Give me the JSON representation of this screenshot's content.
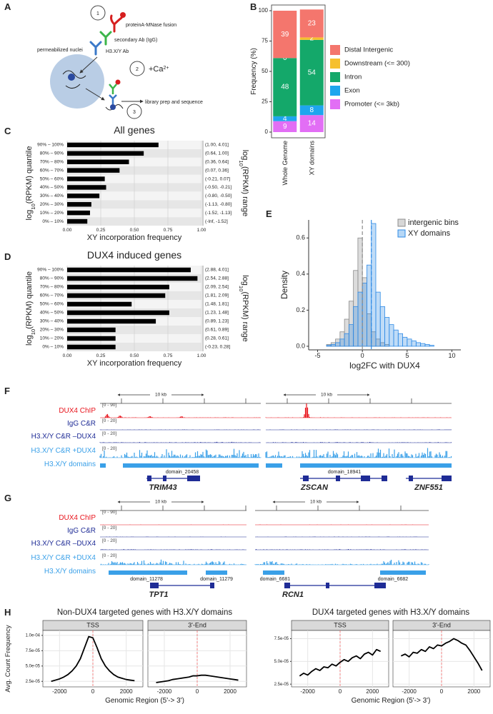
{
  "panel_letters": [
    "A",
    "B",
    "C",
    "D",
    "E",
    "F",
    "G",
    "H"
  ],
  "diagram": {
    "steps": [
      "1",
      "2",
      "3"
    ],
    "fusion": "proteinA-MNase fusion",
    "secondary": "secondary Ab (IgG)",
    "primary": "H3.X/Y Ab",
    "nuclei": "permeabilized nuclei",
    "calcium": "+Ca",
    "calcium_charge": "2+",
    "library": "library prep and sequence"
  },
  "chart_data": [
    {
      "type": "bar",
      "stacked": true,
      "data_labels": true,
      "ylabel": "Frequency (%)",
      "categories": [
        "Whole Genome",
        "XY domains"
      ],
      "series": [
        {
          "name": "Distal Intergenic",
          "color": "#f4766d",
          "values": [
            39,
            23
          ]
        },
        {
          "name": "Downstream (<= 300)",
          "color": "#f6c02e",
          "values": [
            0,
            2
          ]
        },
        {
          "name": "Intron",
          "color": "#14a86a",
          "values": [
            48,
            54
          ]
        },
        {
          "name": "Exon",
          "color": "#1ea6ee",
          "values": [
            4,
            8
          ]
        },
        {
          "name": "Promoter (<= 3kb)",
          "color": "#e26ef5",
          "values": [
            9,
            14
          ]
        }
      ],
      "ylim": [
        0,
        100
      ],
      "yticks": [
        0,
        25,
        50,
        75,
        100
      ]
    },
    {
      "type": "barh",
      "title": "All genes",
      "color": "#000000",
      "xlabel": "XY incorporation frequency",
      "ylabel": [
        "log",
        "10",
        "(RPKM) quantile"
      ],
      "y2label": [
        "log",
        "10",
        "(RPKM) range"
      ],
      "categories": [
        "0% – 10%",
        "10% – 20%",
        "20% – 30%",
        "30% – 40%",
        "40% – 50%",
        "50% – 60%",
        "60% – 70%",
        "70% – 80%",
        "80% – 90%",
        "90% – 100%"
      ],
      "range_labels": [
        "(-Inf, -1.52]",
        "(-1.52, -1.13]",
        "(-1.13, -0.80]",
        "(-0.80, -0.50]",
        "(-0.50, -0.21]",
        "(-0.21, 0.07]",
        "(0.07, 0.36]",
        "(0.36, 0.64]",
        "(0.64, 1.00]",
        "(1.00, 4.01]"
      ],
      "values": [
        0.15,
        0.17,
        0.18,
        0.24,
        0.29,
        0.28,
        0.39,
        0.46,
        0.57,
        0.68
      ],
      "xlim": [
        0,
        1
      ],
      "xticks": [
        {
          "value": 0,
          "label": "0.00"
        },
        0.25,
        {
          "value": 0.5,
          "label": "0.50"
        },
        0.75,
        {
          "value": 1,
          "label": "1.00"
        }
      ],
      "grid": true
    },
    {
      "type": "barh",
      "title": "DUX4 induced genes",
      "color": "#000000",
      "xlabel": "XY incorporation frequency",
      "ylabel": [
        "log",
        "10",
        "(RPKM) quantile"
      ],
      "y2label": [
        "log",
        "10",
        "(RPKM) range"
      ],
      "categories": [
        "0% – 10%",
        "10% – 20%",
        "20% – 30%",
        "30% – 40%",
        "40% – 50%",
        "50% – 60%",
        "60% – 70%",
        "70% – 80%",
        "80% – 90%",
        "90% – 100%"
      ],
      "range_labels": [
        "(-0.23, 0.28]",
        "(0.28, 0.61]",
        "(0.61, 0.89]",
        "(0.89, 1.23]",
        "(1.23, 1.48]",
        "(1.48, 1.81]",
        "(1.81, 2.09]",
        "(2.09, 2.54]",
        "(2.54, 2.88]",
        "(2.88, 4.01]"
      ],
      "values": [
        0.36,
        0.36,
        0.36,
        0.66,
        0.76,
        0.48,
        0.73,
        0.76,
        0.97,
        0.92
      ],
      "xlim": [
        0,
        1
      ],
      "xticks": [
        {
          "value": 0,
          "label": "0.00"
        },
        0.25,
        {
          "value": 0.5,
          "label": "0.50"
        },
        0.75,
        {
          "value": 1,
          "label": "1.00"
        }
      ],
      "grid": true
    },
    {
      "type": "histogram",
      "xlabel": "log2FC with DUX4",
      "ylabel": "Density",
      "bins": [
        -4,
        -3.5,
        -3,
        -2.5,
        -2,
        -1.5,
        -1,
        -0.5,
        0,
        0.5,
        1,
        1.5,
        2,
        2.5,
        3,
        3.5,
        4,
        4.5,
        5,
        5.5,
        6,
        6.5,
        7,
        7.5,
        8
      ],
      "series": [
        {
          "name": "intergenic bins",
          "color": "#8c8c8c",
          "values": [
            0.01,
            0.02,
            0.04,
            0.08,
            0.15,
            0.25,
            0.42,
            0.6,
            0.38,
            0.18,
            0.08,
            0.04,
            0.02,
            0.01,
            0,
            0,
            0,
            0,
            0,
            0,
            0,
            0,
            0,
            0
          ]
        },
        {
          "name": "XY domains",
          "color": "#2f8be6",
          "values": [
            0.005,
            0.01,
            0.02,
            0.04,
            0.07,
            0.12,
            0.22,
            0.3,
            0.35,
            0.45,
            0.68,
            0.3,
            0.22,
            0.16,
            0.12,
            0.09,
            0.07,
            0.05,
            0.04,
            0.03,
            0.02,
            0.015,
            0.01,
            0.005
          ]
        }
      ],
      "reference_lines": [
        {
          "value": 0,
          "color": "#8c8c8c"
        },
        {
          "value": 1,
          "color": "#2f8be6"
        }
      ],
      "xlim": [
        -6,
        11
      ],
      "xticks": [
        -5,
        0,
        5,
        10
      ],
      "ylim": [
        -0.02,
        0.7
      ],
      "yticks": [
        {
          "value": 0,
          "label": "0.0"
        },
        0.2,
        0.4,
        0.6
      ],
      "legend": "top-right"
    },
    {
      "type": "line",
      "color": "#000000",
      "title": "Non-DUX4 targeted genes with H3.X/Y domains",
      "ylabel": "Avg. Count Frequency",
      "xlabel": "Genomic Region (5'-> 3')",
      "x": [
        -2500,
        -2250,
        -2000,
        -1750,
        -1500,
        -1250,
        -1000,
        -750,
        -500,
        -250,
        0,
        250,
        500,
        750,
        1000,
        1250,
        1500,
        1750,
        2000,
        2250,
        2500
      ],
      "facets": [
        {
          "name": "TSS",
          "values": [
            2.5e-05,
            2.7e-05,
            2.9e-05,
            3.2e-05,
            3.6e-05,
            4.2e-05,
            5e-05,
            6.2e-05,
            8e-05,
            9.8e-05,
            9.6e-05,
            8e-05,
            6.2e-05,
            5e-05,
            4.2e-05,
            3.6e-05,
            3.2e-05,
            3e-05,
            2.8e-05,
            2.7e-05,
            2.6e-05
          ]
        },
        {
          "name": "3'-End",
          "values": [
            2.3e-05,
            2.4e-05,
            2.5e-05,
            2.6e-05,
            2.8e-05,
            2.9e-05,
            3e-05,
            3.1e-05,
            3.2e-05,
            3.4e-05,
            3.4e-05,
            3.5e-05,
            3.5e-05,
            3.4e-05,
            3.3e-05,
            3.2e-05,
            3.1e-05,
            3e-05,
            2.9e-05,
            2.8e-05,
            2.7e-05
          ]
        }
      ],
      "vline": 0,
      "xlim": [
        -3000,
        3000
      ],
      "xticks": [
        -2000,
        0,
        2000
      ],
      "ylim": [
        1.6e-05,
        0.000108
      ],
      "yticks": [
        {
          "value": 2.5e-05,
          "label": "2.5e-05"
        },
        {
          "value": 5e-05,
          "label": "5.0e-05"
        },
        {
          "value": 7.5e-05,
          "label": "7.5e-05"
        },
        {
          "value": 0.0001,
          "label": "1.0e-04"
        }
      ],
      "grid": true
    },
    {
      "type": "line",
      "color": "#000000",
      "title": "DUX4 targeted genes with H3.X/Y domains",
      "xlabel": "Genomic Region (5'-> 3')",
      "x": [
        -2500,
        -2250,
        -2000,
        -1750,
        -1500,
        -1250,
        -1000,
        -750,
        -500,
        -250,
        0,
        250,
        500,
        750,
        1000,
        1250,
        1500,
        1750,
        2000,
        2250,
        2500
      ],
      "facets": [
        {
          "name": "TSS",
          "values": [
            3.4e-05,
            3.7e-05,
            3.5e-05,
            3.9e-05,
            4.2e-05,
            4e-05,
            4.4e-05,
            4.3e-05,
            4.7e-05,
            4.5e-05,
            4.9e-05,
            5.2e-05,
            5e-05,
            5.4e-05,
            5.6e-05,
            5.3e-05,
            5.8e-05,
            6e-05,
            5.7e-05,
            6.3e-05,
            6.1e-05
          ]
        },
        {
          "name": "3'-End",
          "values": [
            5.6e-05,
            5.8e-05,
            5.5e-05,
            6e-05,
            5.9e-05,
            6.3e-05,
            6.1e-05,
            6.6e-05,
            6.4e-05,
            6.8e-05,
            6.7e-05,
            7e-05,
            7.2e-05,
            7.5e-05,
            7.3e-05,
            7e-05,
            6.8e-05,
            6.2e-05,
            5.5e-05,
            4.8e-05,
            4e-05
          ]
        }
      ],
      "vline": 0,
      "xlim": [
        -3000,
        3000
      ],
      "xticks": [
        -2000,
        0,
        2000
      ],
      "ylim": [
        2.2e-05,
        8.4e-05
      ],
      "yticks": [
        {
          "value": 2.5e-05,
          "label": "2.5e-05"
        },
        {
          "value": 5e-05,
          "label": "5.0e-05"
        },
        {
          "value": 7.5e-05,
          "label": "7.5e-05"
        }
      ],
      "grid": true
    }
  ],
  "tracks": {
    "rows": [
      {
        "label": "DUX4 ChIP",
        "color": "#e8141c"
      },
      {
        "label": "IgG C&R",
        "color": "#1f2c96"
      },
      {
        "label": "H3.X/Y C&R –DUX4",
        "color": "#1f2c96"
      },
      {
        "label": "H3.X/Y C&R +DUX4",
        "color": "#3aa0e8"
      },
      {
        "label": "H3.X/Y domains",
        "color": "#3aa0e8"
      }
    ],
    "panels": [
      {
        "loci": [
          {
            "scale": "10 kb",
            "ranges": [
              "[0 - 90]",
              "[0 - 20]",
              "[0 - 20]",
              "[0 - 20]"
            ],
            "domains": [
              "domain_20458"
            ],
            "genes": [
              "TRIM43"
            ]
          },
          {
            "scale": "10 kb",
            "domains": [
              "domain_18941"
            ],
            "genes": [
              "ZSCAN",
              "ZNF551"
            ]
          }
        ]
      },
      {
        "loci": [
          {
            "scale": "10 kb",
            "ranges": [
              "[0 - 90]",
              "[0 - 20]",
              "[0 - 20]",
              "[0 - 20]"
            ],
            "domains": [
              "domain_11278",
              "domain_11279"
            ],
            "genes": [
              "TPT1"
            ]
          },
          {
            "scale": "10 kb",
            "domains": [
              "domain_6681",
              "domain_6682"
            ],
            "genes": [
              "RCN1"
            ]
          }
        ]
      }
    ]
  }
}
